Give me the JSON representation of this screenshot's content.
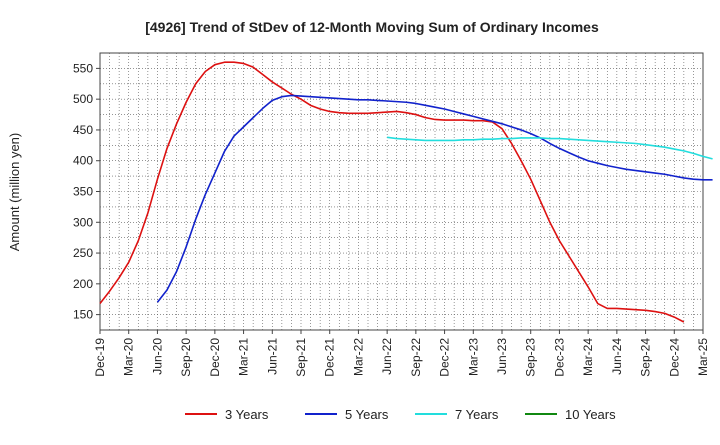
{
  "chart_data": {
    "type": "line",
    "title": "[4926]  Trend of StDev of 12-Month Moving Sum of Ordinary Incomes",
    "ylabel": "Amount (million yen)",
    "xlabel": "",
    "ylim": [
      125,
      575
    ],
    "yticks": [
      150,
      200,
      250,
      300,
      350,
      400,
      450,
      500,
      550
    ],
    "x_ticks": [
      "Dec-19",
      "Mar-20",
      "Jun-20",
      "Sep-20",
      "Dec-20",
      "Mar-21",
      "Jun-21",
      "Sep-21",
      "Dec-21",
      "Mar-22",
      "Jun-22",
      "Sep-22",
      "Dec-22",
      "Mar-23",
      "Jun-23",
      "Sep-23",
      "Dec-23",
      "Mar-24",
      "Jun-24",
      "Sep-24",
      "Dec-24",
      "Mar-25"
    ],
    "grid": true,
    "legend_position": "bottom",
    "series": [
      {
        "name": "3 Years",
        "color": "#dd1111",
        "start_index": 0,
        "values": [
          168,
          188,
          210,
          235,
          270,
          315,
          370,
          420,
          460,
          495,
          525,
          545,
          556,
          560,
          560,
          558,
          552,
          540,
          528,
          518,
          508,
          500,
          490,
          484,
          480,
          478,
          477,
          477,
          477,
          478,
          479,
          480,
          478,
          475,
          470,
          467,
          466,
          466,
          466,
          465,
          465,
          463,
          452,
          428,
          400,
          370,
          335,
          300,
          270,
          245,
          220,
          195,
          168,
          160,
          160,
          159,
          158,
          157,
          155,
          152,
          146,
          138
        ]
      },
      {
        "name": "5 Years",
        "color": "#1122cc",
        "start_index": 6,
        "values": [
          170,
          190,
          220,
          260,
          305,
          345,
          380,
          415,
          440,
          455,
          470,
          485,
          498,
          504,
          506,
          505,
          504,
          503,
          502,
          501,
          500,
          499,
          499,
          498,
          497,
          496,
          495,
          493,
          490,
          487,
          484,
          480,
          476,
          472,
          468,
          464,
          460,
          455,
          450,
          444,
          437,
          428,
          420,
          413,
          406,
          400,
          396,
          392,
          389,
          386,
          384,
          382,
          380,
          378,
          375,
          372,
          370,
          369,
          369
        ]
      },
      {
        "name": "7 Years",
        "color": "#22dddd",
        "start_index": 30,
        "values": [
          438,
          436,
          435,
          434,
          433,
          433,
          433,
          433,
          434,
          434,
          435,
          435,
          436,
          436,
          437,
          437,
          437,
          436,
          436,
          435,
          434,
          433,
          432,
          431,
          430,
          429,
          428,
          426,
          424,
          422,
          419,
          416,
          412,
          407,
          403
        ]
      },
      {
        "name": "10 Years",
        "color": "#118811",
        "start_index": 0,
        "values": []
      }
    ]
  }
}
